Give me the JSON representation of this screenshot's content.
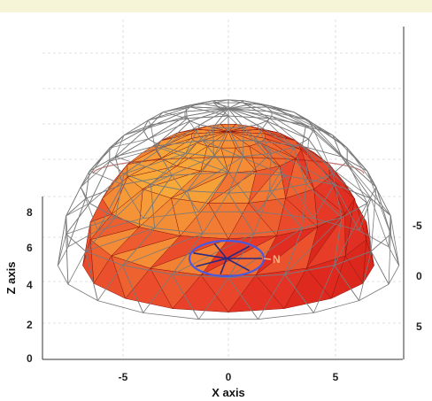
{
  "chart_data": {
    "type": "surface3d",
    "title": "",
    "xlabel": "X axis",
    "ylabel": "",
    "zlabel": "Z axis",
    "x_ticks": [
      "-5",
      "0",
      "5"
    ],
    "y_ticks": [
      "-5",
      "0",
      "5"
    ],
    "z_ticks": [
      "0",
      "2",
      "4",
      "6",
      "8"
    ],
    "xlim": [
      -8.5,
      8.5
    ],
    "zlim": [
      0,
      8.5
    ],
    "grid": true,
    "objects": [
      {
        "kind": "geodesic-wireframe-hemisphere",
        "radius": 8,
        "color": "#7a7a7a"
      },
      {
        "kind": "solid-faceted-hemisphere",
        "radius": 7,
        "colors": [
          "#e8281e",
          "#f5a53a"
        ]
      },
      {
        "kind": "ellipse-marker",
        "label": "N",
        "color": "#4a5adf"
      }
    ]
  },
  "colors": {
    "accent_orange": "#f5a53a",
    "accent_red": "#e8281e",
    "marker_blue": "#4a5adf",
    "label_N": "#f0b27a"
  }
}
